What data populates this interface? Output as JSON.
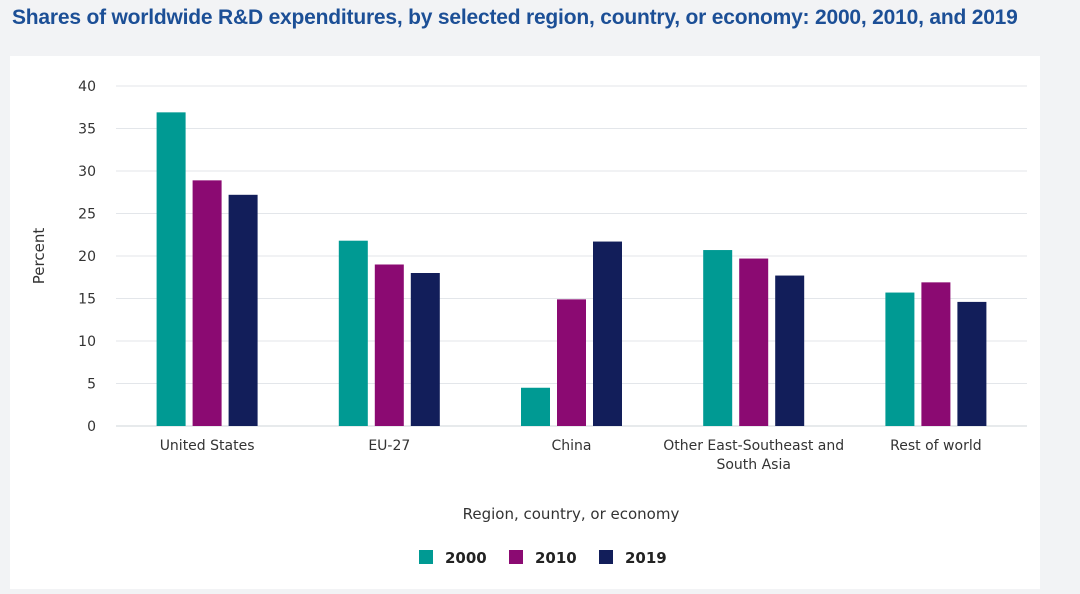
{
  "page": {
    "title": "Shares of worldwide R&D expenditures, by selected region, country, or economy: 2000, 2010, and 2019"
  },
  "colors": {
    "series_2000": "#009a93",
    "series_2010": "#8b0a72",
    "series_2019": "#121e5a",
    "grid": "#e3e6ea",
    "title": "#1c4f96"
  },
  "chart_data": {
    "type": "bar",
    "title": "Shares of worldwide R&D expenditures, by selected region, country, or economy: 2000, 2010, and 2019",
    "xlabel": "Region, country, or economy",
    "ylabel": "Percent",
    "ylim": [
      0,
      40
    ],
    "yticks": [
      "0",
      "5",
      "10",
      "15",
      "20",
      "25",
      "30",
      "35",
      "40"
    ],
    "grid": true,
    "legend_position": "bottom-center",
    "categories": [
      [
        "United States"
      ],
      [
        "EU-27"
      ],
      [
        "China"
      ],
      [
        "Other East-Southeast and",
        "South Asia"
      ],
      [
        "Rest of world"
      ]
    ],
    "series": [
      {
        "name": "2000",
        "color": "#009a93",
        "values": [
          36.9,
          21.8,
          4.5,
          20.7,
          15.7
        ]
      },
      {
        "name": "2010",
        "color": "#8b0a72",
        "values": [
          28.9,
          19.0,
          14.9,
          19.7,
          16.9
        ]
      },
      {
        "name": "2019",
        "color": "#121e5a",
        "values": [
          27.2,
          18.0,
          21.7,
          17.7,
          14.6
        ]
      }
    ]
  }
}
